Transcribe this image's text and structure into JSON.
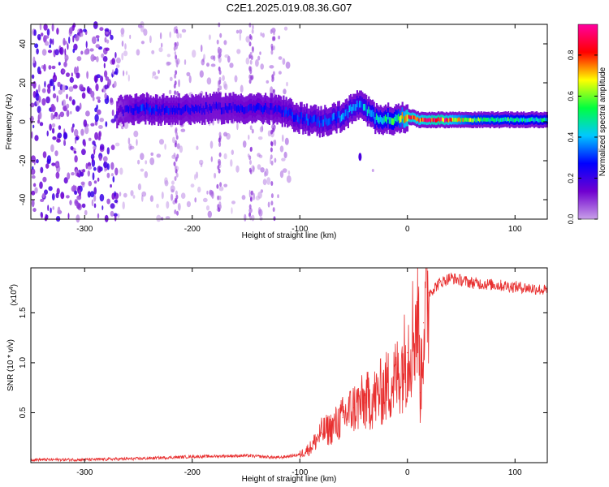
{
  "title": "C2E1.2025.019.08.36.G07",
  "chart_data": [
    {
      "type": "heatmap",
      "xlabel": "Height of straight line (km)",
      "ylabel": "Frequency (Hz)",
      "xlim": [
        -350,
        130
      ],
      "ylim": [
        -50,
        50
      ],
      "x_ticks": [
        -300,
        -200,
        -100,
        0,
        100
      ],
      "x_tick_labels": [
        "-300",
        "-200",
        "-100",
        "0",
        "100"
      ],
      "y_ticks": [
        -40,
        -20,
        0,
        20,
        40
      ],
      "y_tick_labels": [
        "-40",
        "-20",
        "0",
        "20",
        "40"
      ],
      "colorbar": {
        "label": "Normalized spectral amplitude",
        "range": [
          0,
          0.95
        ],
        "ticks": [
          0.0,
          0.2,
          0.4,
          0.6,
          0.8
        ],
        "tick_labels": [
          "0.0",
          "0.2",
          "0.4",
          "0.6",
          "0.8"
        ],
        "colormap": [
          "#c8a0e8",
          "#7000d0",
          "#0000ff",
          "#00c8ff",
          "#00ff40",
          "#ffff00",
          "#ff0000",
          "#ff00a0"
        ]
      },
      "ridge": [
        {
          "x": -270,
          "freq": 5,
          "amp": 0.15
        },
        {
          "x": -250,
          "freq": 7,
          "amp": 0.28
        },
        {
          "x": -220,
          "freq": 6,
          "amp": 0.25
        },
        {
          "x": -180,
          "freq": 7,
          "amp": 0.22
        },
        {
          "x": -140,
          "freq": 7,
          "amp": 0.25
        },
        {
          "x": -120,
          "freq": 6,
          "amp": 0.25
        },
        {
          "x": -100,
          "freq": 2,
          "amp": 0.3
        },
        {
          "x": -80,
          "freq": 0,
          "amp": 0.3
        },
        {
          "x": -60,
          "freq": 3,
          "amp": 0.35
        },
        {
          "x": -45,
          "freq": 9,
          "amp": 0.35
        },
        {
          "x": -30,
          "freq": 2,
          "amp": 0.45
        },
        {
          "x": -10,
          "freq": 1,
          "amp": 0.5
        },
        {
          "x": 0,
          "freq": 3,
          "amp": 0.8
        },
        {
          "x": 10,
          "freq": 1,
          "amp": 0.75
        },
        {
          "x": 30,
          "freq": 1,
          "amp": 0.85
        },
        {
          "x": 60,
          "freq": 1,
          "amp": 0.55
        },
        {
          "x": 100,
          "freq": 1,
          "amp": 0.5
        },
        {
          "x": 130,
          "freq": 1,
          "amp": 0.45
        }
      ]
    },
    {
      "type": "line",
      "xlabel": "Height of straight line (km)",
      "ylabel": "SNR (10 * v/v)",
      "y_multiplier_label": "(x10",
      "y_multiplier_exp": "4",
      "y_multiplier_close": ")",
      "xlim": [
        -350,
        130
      ],
      "ylim": [
        0,
        1.95
      ],
      "x_ticks": [
        -300,
        -200,
        -100,
        0,
        100
      ],
      "x_tick_labels": [
        "-300",
        "-200",
        "-100",
        "0",
        "100"
      ],
      "y_ticks": [
        0.5,
        1.0,
        1.5
      ],
      "y_tick_labels": [
        "0.5",
        "1.0",
        "1.5"
      ],
      "line_color": "#e83030",
      "series": [
        {
          "x": [
            -350,
            -300,
            -250,
            -200,
            -150,
            -120,
            -100,
            -90,
            -80,
            -70,
            -60,
            -50,
            -40,
            -30,
            -20,
            -10,
            0,
            5,
            10,
            12,
            15,
            20,
            30,
            40,
            60,
            80,
            100,
            120,
            130
          ],
          "y": [
            0.03,
            0.03,
            0.04,
            0.06,
            0.07,
            0.05,
            0.08,
            0.15,
            0.3,
            0.35,
            0.45,
            0.55,
            0.6,
            0.65,
            0.75,
            0.85,
            1.1,
            1.3,
            1.5,
            0.7,
            1.4,
            1.7,
            1.8,
            1.85,
            1.8,
            1.78,
            1.76,
            1.74,
            1.72
          ]
        }
      ]
    }
  ]
}
